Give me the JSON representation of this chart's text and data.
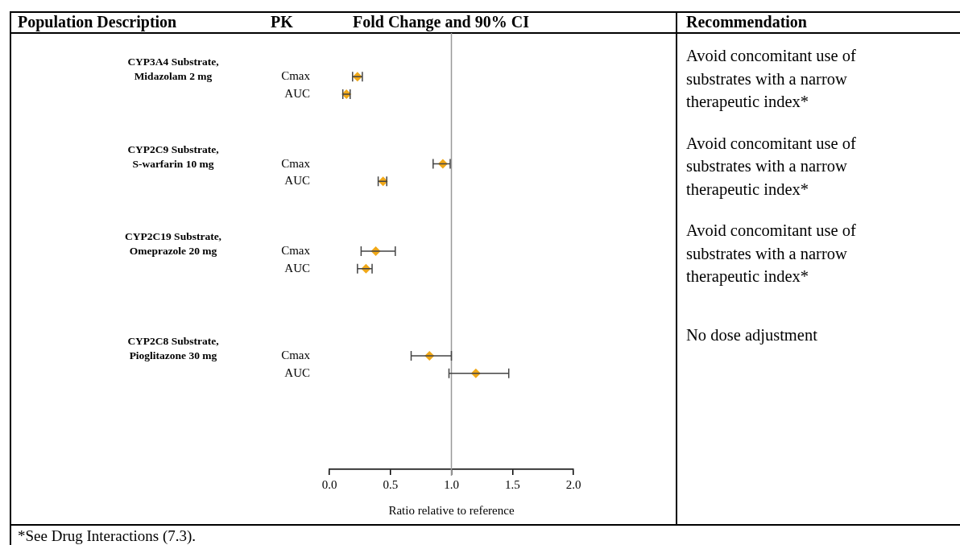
{
  "chart_data": {
    "type": "scatter",
    "orientation": "horizontal",
    "title": "Fold Change and 90% CI",
    "xlabel": "Ratio relative to reference",
    "categories": [
      null,
      null,
      "Cmax",
      "AUC",
      null,
      null,
      null,
      "Cmax",
      "AUC",
      null,
      null,
      null,
      "Cmax",
      "AUC",
      null,
      null,
      null,
      null,
      "Cmax",
      "AUC",
      null,
      null,
      null,
      null,
      null
    ],
    "series": [
      {
        "color": "#f0a818",
        "values": [
          null,
          null,
          0.23,
          0.14,
          null,
          null,
          null,
          0.93,
          0.44,
          null,
          null,
          null,
          0.38,
          0.3,
          null,
          null,
          null,
          null,
          0.82,
          1.2,
          null,
          null,
          null,
          null,
          null
        ],
        "errors": [
          null,
          null,
          [
            0.19,
            0.27
          ],
          [
            0.11,
            0.17
          ],
          null,
          null,
          null,
          [
            0.85,
            0.99
          ],
          [
            0.4,
            0.47
          ],
          null,
          null,
          null,
          [
            0.26,
            0.54
          ],
          [
            0.23,
            0.35
          ],
          null,
          null,
          null,
          null,
          [
            0.67,
            1.0
          ],
          [
            0.98,
            1.47
          ],
          null,
          null,
          null,
          null,
          null
        ]
      }
    ],
    "xlim": [
      0,
      2
    ],
    "xticks": [
      {
        "value": 0,
        "label": "0.0"
      },
      {
        "value": 0.5,
        "label": "0.5"
      },
      {
        "value": 1,
        "label": "1.0"
      },
      {
        "value": 1.5,
        "label": "1.5"
      },
      {
        "value": 2,
        "label": "2.0"
      }
    ],
    "ref_lines": [
      {
        "axis": "x",
        "value": 1,
        "color": "#999999"
      }
    ],
    "grid": false,
    "legend": false,
    "marker": "diamond",
    "annotations": [
      "Population Description",
      "PK",
      "Recommendation",
      "CYP3A4 Substrate,\nMidazolam 2 mg",
      "CYP2C9 Substrate,\nS-warfarin 10 mg",
      "CYP2C19 Substrate,\nOmeprazole 20 mg",
      "CYP2C8 Substrate,\nPioglitazone 30 mg",
      "Avoid concomitant use of substrates with a narrow therapeutic index*",
      "Avoid concomitant use of substrates with a narrow therapeutic index*",
      "Avoid concomitant use of substrates with a narrow therapeutic index*",
      "No dose adjustment",
      "*See Drug Interactions (7.3)."
    ]
  }
}
